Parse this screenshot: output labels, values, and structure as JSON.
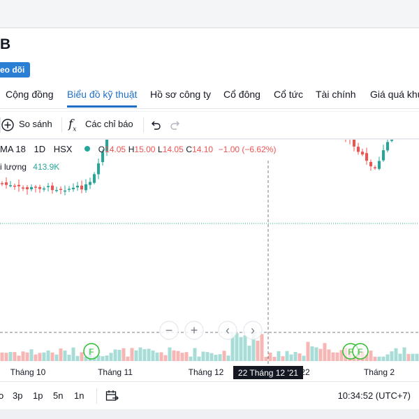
{
  "header": {
    "ticker": "B",
    "follow_label": "eo dõi"
  },
  "tabs": [
    {
      "label": "Cộng đồng",
      "active": false
    },
    {
      "label": "Biểu đồ kỹ thuật",
      "active": true
    },
    {
      "label": "Hồ sơ công ty",
      "active": false
    },
    {
      "label": "Cổ đông",
      "active": false
    },
    {
      "label": "Cổ tức",
      "active": false
    },
    {
      "label": "Tài chính",
      "active": false
    },
    {
      "label": "Giá quá khứ",
      "active": false
    }
  ],
  "toolbar": {
    "compare_label": "So sánh",
    "indicators_label": "Các chỉ báo",
    "compare_icon": "plus-circle-icon",
    "indicators_icon": "fx-icon",
    "undo_icon": "undo-icon",
    "redo_icon": "redo-icon"
  },
  "legend": {
    "symbol": "MA 18",
    "interval": "1D",
    "exchange": "HSX",
    "open_label": "O",
    "open": "14.05",
    "high_label": "H",
    "high": "15.00",
    "low_label": "L",
    "low": "14.05",
    "close_label": "C",
    "close": "14.10",
    "change": "−1.00 (−6.62%)",
    "volume_label": "i lượng",
    "volume": "413.9K",
    "up_color": "#26a69a",
    "down_color": "#ef5350"
  },
  "chart_data": {
    "type": "candlestick",
    "x_labels": [
      "Tháng 10",
      "Tháng 11",
      "Tháng 12",
      "22",
      "Tháng 2"
    ],
    "crosshair_label": "22 Tháng 12 '21",
    "event_markers": [
      "F",
      "F",
      "F"
    ],
    "nav_buttons": [
      "zoom-out",
      "zoom-in",
      "scroll-left",
      "scroll-right"
    ]
  },
  "bottom_bar": {
    "ranges": [
      "o",
      "3p",
      "1p",
      "5n",
      "1n"
    ],
    "date_range_icon": "calendar-goto-icon",
    "clock": "10:34:52 (UTC+7)"
  }
}
